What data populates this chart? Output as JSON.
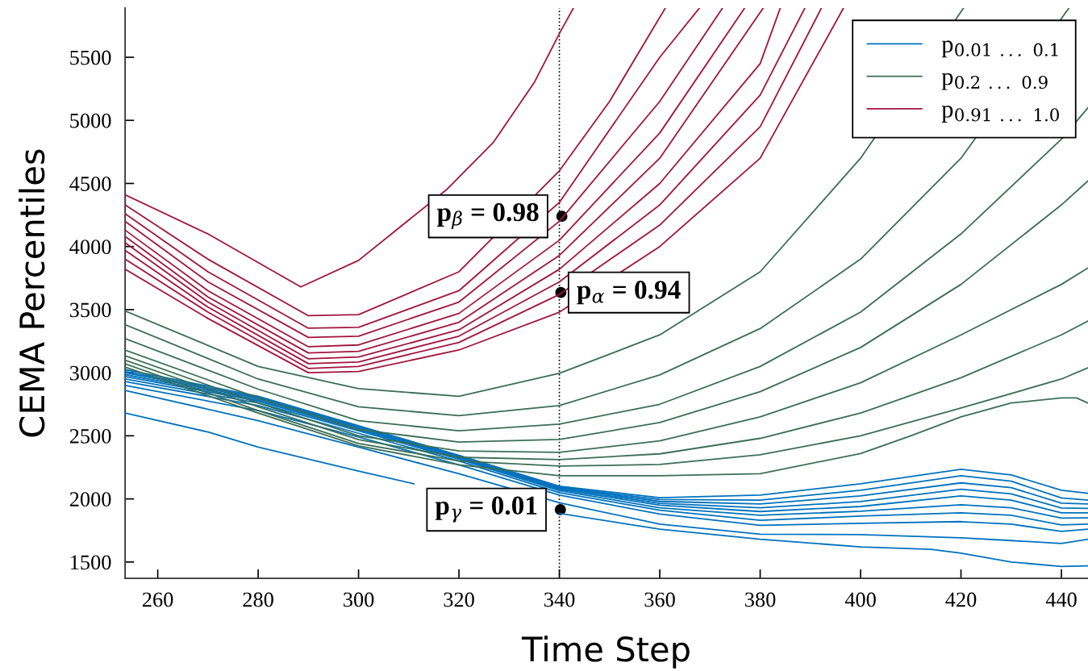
{
  "chart_data": {
    "type": "line",
    "xlabel": "Time Step",
    "ylabel": "CEMA Percentiles",
    "xlim": [
      253.5,
      445.3
    ],
    "ylim": [
      1370,
      5890
    ],
    "xticks": [
      260,
      280,
      300,
      320,
      340,
      360,
      380,
      400,
      420,
      440
    ],
    "yticks": [
      1500,
      2000,
      2500,
      3000,
      3500,
      4000,
      4500,
      5000,
      5500
    ],
    "grid": false,
    "legend": "top right",
    "line_style": "solid",
    "ref_lines": [
      {
        "axis": "x",
        "value": 340,
        "line_style": "dotted",
        "color": "#000000"
      }
    ],
    "annotations": [
      {
        "text": "p$_{β}$ = 0.98",
        "x": 340.5,
        "y": 4240
      },
      {
        "text": "p$_{α}$ = 0.94",
        "x": 340.3,
        "y": 3636
      },
      {
        "text": "p$_{γ}$ = 0.01",
        "x": 340.2,
        "y": 1915
      }
    ],
    "series": [
      {
        "name": "p$_{0.01}$ $_{...}$ $_{0.1}$",
        "color": "#0072bd",
        "x": [
          253.5,
          270,
          280,
          300,
          311,
          320,
          340,
          360,
          380,
          400,
          414,
          420,
          430,
          440,
          445.3
        ],
        "values": [
          2680,
          2530,
          2410,
          2220,
          2120,
          null,
          1885,
          1760,
          1680,
          1620,
          1600,
          1570,
          1500,
          1465,
          1470
        ]
      },
      {
        "color": "#0072bd",
        "x": [
          253.5,
          280,
          300,
          320,
          340,
          360,
          380,
          400,
          420,
          430,
          440,
          445.3
        ],
        "values": [
          2860,
          2620,
          2410,
          2200,
          1970,
          1800,
          1720,
          1717,
          1692,
          1670,
          1647,
          1680
        ]
      },
      {
        "color": "#0072bd",
        "x": [
          253.5,
          280,
          300,
          320,
          340,
          360,
          380,
          400,
          420,
          430,
          440,
          445.3
        ],
        "values": [
          2900,
          2700,
          2490,
          2270,
          2030,
          1880,
          1790,
          1807,
          1820,
          1800,
          1743,
          1760
        ]
      },
      {
        "color": "#0072bd",
        "x": [
          253.5,
          280,
          300,
          320,
          340,
          360,
          380,
          400,
          420,
          430,
          440,
          445.3
        ],
        "values": [
          2930,
          2740,
          2520,
          2300,
          2050,
          1910,
          1830,
          1864,
          1890,
          1870,
          1794,
          1800
        ]
      },
      {
        "color": "#0072bd",
        "x": [
          253.5,
          280,
          300,
          320,
          340,
          360,
          380,
          400,
          420,
          430,
          440,
          445.3
        ],
        "values": [
          2950,
          2760,
          2540,
          2315,
          2065,
          1930,
          1870,
          1902,
          1954,
          1930,
          1848,
          1850
        ]
      },
      {
        "color": "#0072bd",
        "x": [
          253.5,
          280,
          300,
          320,
          340,
          360,
          380,
          400,
          420,
          430,
          440,
          445.3
        ],
        "values": [
          2970,
          2775,
          2550,
          2325,
          2075,
          1950,
          1900,
          1940,
          2024,
          1990,
          1890,
          1890
        ]
      },
      {
        "color": "#0072bd",
        "x": [
          253.5,
          280,
          300,
          320,
          340,
          360,
          380,
          400,
          420,
          430,
          440,
          445.3
        ],
        "values": [
          2985,
          2785,
          2560,
          2332,
          2083,
          1965,
          1930,
          1979,
          2076,
          2040,
          1928,
          1925
        ]
      },
      {
        "color": "#0072bd",
        "x": [
          253.5,
          280,
          300,
          320,
          340,
          360,
          380,
          400,
          420,
          430,
          440,
          445.3
        ],
        "values": [
          3000,
          2795,
          2568,
          2338,
          2090,
          1980,
          1960,
          2024,
          2127,
          2090,
          1966,
          1960
        ]
      },
      {
        "color": "#0072bd",
        "x": [
          253.5,
          280,
          300,
          320,
          340,
          360,
          380,
          400,
          420,
          430,
          440,
          445.3
        ],
        "values": [
          3010,
          2805,
          2575,
          2342,
          2095,
          1995,
          1990,
          2069,
          2184,
          2140,
          2008,
          1990
        ]
      },
      {
        "color": "#0072bd",
        "x": [
          253.5,
          280,
          300,
          320,
          340,
          360,
          380,
          400,
          420,
          430,
          440,
          445.3
        ],
        "values": [
          3025,
          2813,
          2580,
          2345,
          2100,
          2010,
          2030,
          2120,
          2235,
          2190,
          2069,
          2045
        ]
      },
      {
        "name": "p$_{0.2}$ $_{...}$ $_{0.9}$",
        "color": "#3b6e55",
        "x": [
          253.5,
          280,
          300,
          320,
          340,
          360,
          380,
          400,
          410,
          420,
          430,
          440,
          443,
          445.3
        ],
        "values": [
          3045,
          2680,
          2420,
          2270,
          2184,
          2184,
          2200,
          2360,
          2500,
          2650,
          2760,
          2800,
          2800,
          2760
        ]
      },
      {
        "color": "#3b6e55",
        "x": [
          253.5,
          280,
          300,
          320,
          340,
          360,
          380,
          400,
          420,
          440,
          445.3
        ],
        "values": [
          3070,
          2700,
          2440,
          2300,
          2260,
          2273,
          2350,
          2500,
          2720,
          2950,
          3040
        ]
      },
      {
        "color": "#3b6e55",
        "x": [
          253.5,
          280,
          300,
          320,
          340,
          360,
          380,
          400,
          420,
          440,
          445.3
        ],
        "values": [
          3100,
          2730,
          2470,
          2330,
          2312,
          2357,
          2480,
          2680,
          2960,
          3300,
          3410
        ]
      },
      {
        "color": "#3b6e55",
        "x": [
          253.5,
          280,
          300,
          320,
          340,
          360,
          380,
          400,
          420,
          440,
          445.3
        ],
        "values": [
          3135,
          2760,
          2500,
          2380,
          2369,
          2460,
          2650,
          2920,
          3300,
          3700,
          3830
        ]
      },
      {
        "color": "#3b6e55",
        "x": [
          253.5,
          280,
          300,
          320,
          340,
          360,
          380,
          400,
          420,
          440,
          445.3
        ],
        "values": [
          3180,
          2800,
          2550,
          2450,
          2471,
          2605,
          2850,
          3200,
          3700,
          4330,
          4520
        ]
      },
      {
        "color": "#3b6e55",
        "x": [
          253.5,
          280,
          300,
          320,
          340,
          360,
          380,
          400,
          420,
          440,
          445.3
        ],
        "values": [
          3270,
          2870,
          2620,
          2540,
          2593,
          2750,
          3050,
          3480,
          4100,
          4850,
          5100
        ]
      },
      {
        "color": "#3b6e55",
        "x": [
          253.5,
          280,
          300,
          320,
          340,
          360,
          380,
          400,
          420,
          441.5
        ],
        "values": [
          3380,
          2950,
          2730,
          2660,
          2740,
          2983,
          3350,
          3900,
          4700,
          5890
        ]
      },
      {
        "color": "#3b6e55",
        "x": [
          253.5,
          280,
          300,
          320,
          340,
          360,
          380,
          400,
          420.5
        ],
        "values": [
          3490,
          3050,
          2874,
          2813,
          2995,
          3300,
          3800,
          4700,
          5890
        ]
      },
      {
        "name": "p$_{0.91}$ $_{...}$ $_{1.0}$",
        "color": "#a2143c",
        "x": [
          253.5,
          270,
          290,
          300,
          320,
          340,
          360,
          380,
          396.6
        ],
        "values": [
          3820,
          3430,
          3000,
          3010,
          3180,
          3480,
          4000,
          4700,
          5890
        ]
      },
      {
        "color": "#a2143c",
        "x": [
          253.5,
          270,
          290,
          300,
          320,
          340,
          360,
          380,
          392.2
        ],
        "values": [
          3900,
          3480,
          3034,
          3050,
          3240,
          3620,
          4170,
          4950,
          5890
        ]
      },
      {
        "color": "#a2143c",
        "x": [
          253.5,
          270,
          290,
          300,
          320,
          340,
          360,
          380,
          388.9
        ],
        "values": [
          3970,
          3520,
          3072,
          3085,
          3290,
          3720,
          4330,
          5200,
          5890
        ]
      },
      {
        "color": "#a2143c",
        "x": [
          253.5,
          270,
          290,
          300,
          320,
          340,
          360,
          380,
          384
        ],
        "values": [
          4030,
          3560,
          3110,
          3125,
          3340,
          3820,
          4500,
          5450,
          5890
        ]
      },
      {
        "color": "#a2143c",
        "x": [
          253.5,
          270,
          290,
          300,
          320,
          340,
          360,
          380.6
        ],
        "values": [
          4080,
          3600,
          3157,
          3170,
          3400,
          3930,
          4700,
          5890
        ]
      },
      {
        "color": "#a2143c",
        "x": [
          253.5,
          270,
          290,
          300,
          320,
          340,
          360,
          376.9
        ],
        "values": [
          4130,
          3650,
          3206,
          3220,
          3470,
          4050,
          4900,
          5890
        ]
      },
      {
        "color": "#a2143c",
        "x": [
          253.5,
          270,
          290,
          300,
          320,
          340,
          360,
          372.5
        ],
        "values": [
          4200,
          3720,
          3280,
          3290,
          3560,
          4200,
          5150,
          5890
        ]
      },
      {
        "color": "#a2143c",
        "x": [
          253.5,
          270,
          290,
          300,
          320,
          340,
          360,
          367.9
        ],
        "values": [
          4260,
          3800,
          3353,
          3360,
          3650,
          4350,
          5500,
          5890
        ]
      },
      {
        "color": "#a2143c",
        "x": [
          253.5,
          270,
          290,
          300,
          320,
          340,
          350,
          361.1
        ],
        "values": [
          4330,
          3900,
          3452,
          3460,
          3800,
          4600,
          5150,
          5890
        ]
      },
      {
        "color": "#a2143c",
        "x": [
          253.5,
          270,
          288.5,
          300,
          317.5,
          326.8,
          335,
          340.3,
          342.8
        ],
        "values": [
          4410,
          4100,
          3680,
          3890,
          4450,
          4823,
          5300,
          5710,
          5890
        ]
      }
    ]
  }
}
